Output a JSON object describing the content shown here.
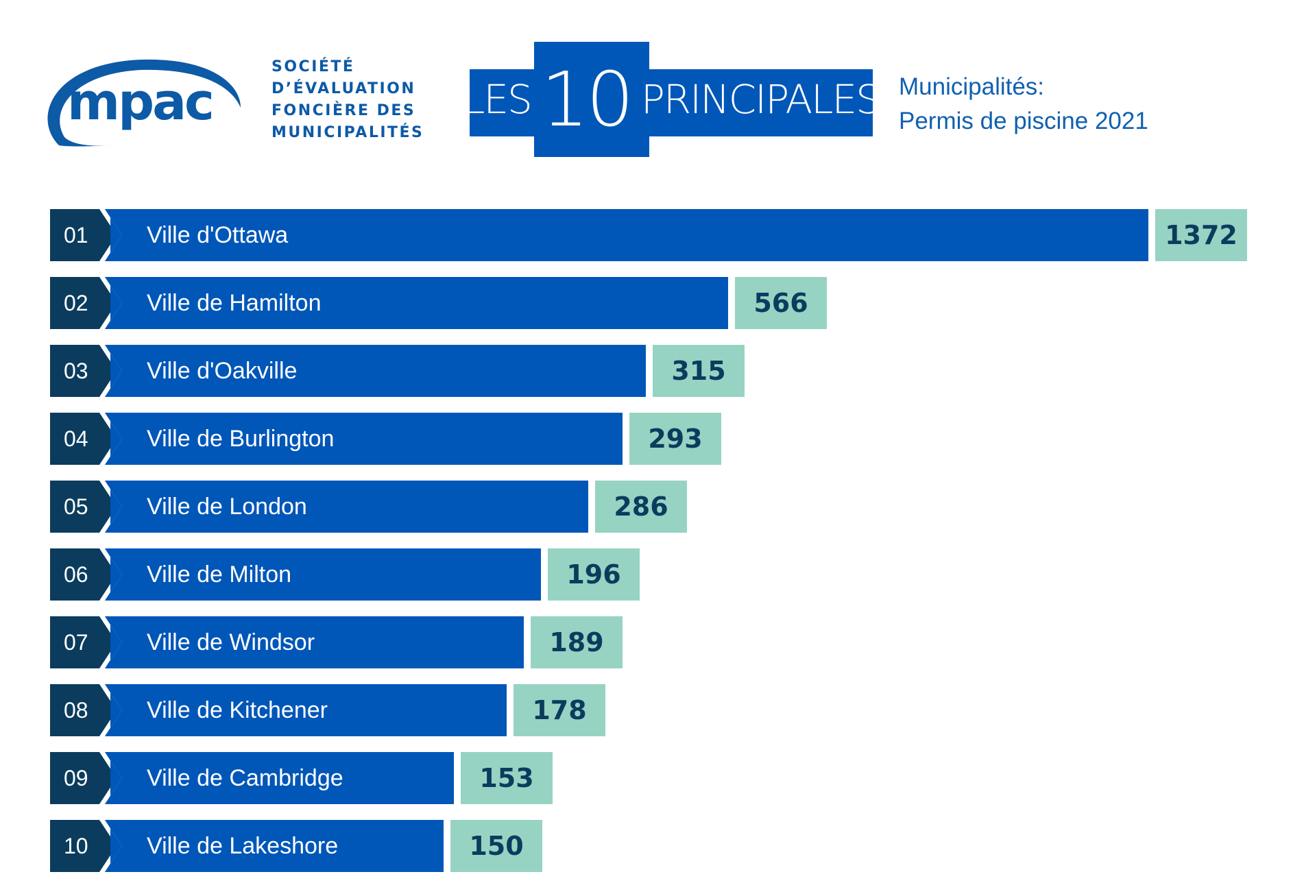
{
  "logo": {
    "text": "mpac"
  },
  "organization": {
    "lines": [
      "SOCIÉTÉ",
      "D’ÉVALUATION",
      "FONCIÈRE DES",
      "MUNICIPALITÉS"
    ]
  },
  "title": {
    "prefix": "LES",
    "number": "10",
    "suffix": "PRINCIPALES"
  },
  "subtitle": {
    "line1": "Municipalités:",
    "line2": "Permis de piscine 2021"
  },
  "colors": {
    "bar": "#0057b8",
    "rank_box": "#0b3c5d",
    "value_box": "#96d3c3",
    "value_text": "#0b3c5d"
  },
  "chart_data": {
    "type": "bar",
    "orientation": "horizontal",
    "ranks": [
      "01",
      "02",
      "03",
      "04",
      "05",
      "06",
      "07",
      "08",
      "09",
      "10"
    ],
    "categories": [
      "Ville d'Ottawa",
      "Ville de Hamilton",
      "Ville d'Oakville",
      "Ville de Burlington",
      "Ville de London",
      "Ville de Milton",
      "Ville de Windsor",
      "Ville de Kitchener",
      "Ville de Cambridge",
      "Ville de Lakeshore"
    ],
    "values": [
      1372,
      566,
      315,
      293,
      286,
      196,
      189,
      178,
      153,
      150
    ],
    "value_labels": [
      "1372",
      "566",
      "315",
      "293",
      "286",
      "196",
      "189",
      "178",
      "153",
      "150"
    ]
  }
}
